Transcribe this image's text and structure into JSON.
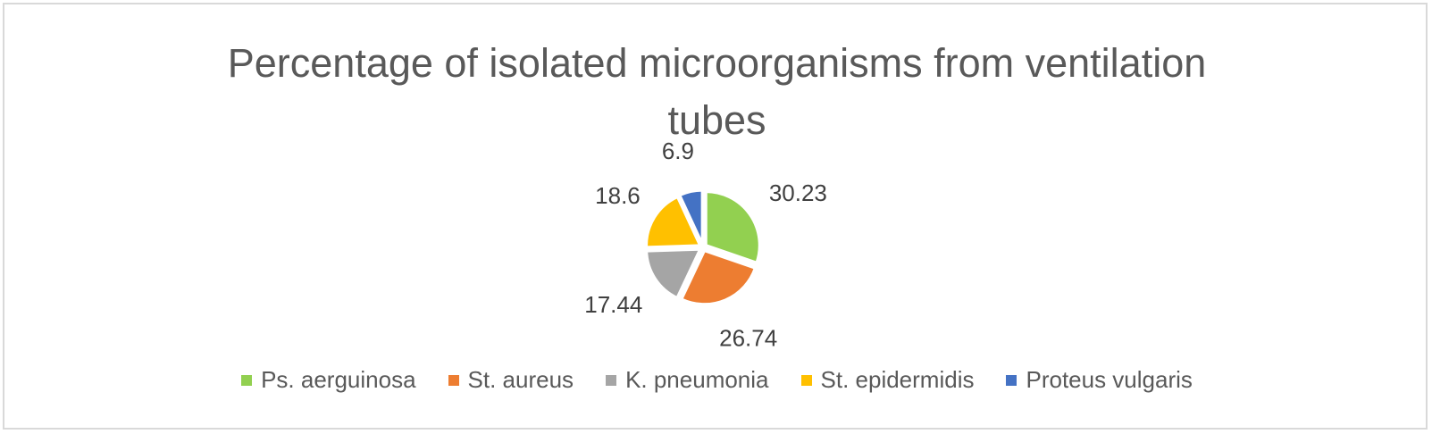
{
  "chart_data": {
    "type": "pie",
    "title": "Percentage of isolated microorganisms from ventilation tubes",
    "categories": [
      "Ps. aerguinosa",
      "St. aureus",
      "K. pneumonia",
      "St. epidermidis",
      "Proteus vulgaris"
    ],
    "values": [
      30.23,
      26.74,
      17.44,
      18.6,
      6.9
    ],
    "data_labels": [
      "30.23",
      "26.74",
      "17.44",
      "18.6",
      "6.9"
    ],
    "colors": [
      "#92d050",
      "#ed7d31",
      "#a5a5a5",
      "#ffc000",
      "#4472c4"
    ],
    "legend_position": "bottom",
    "exploded": true
  }
}
